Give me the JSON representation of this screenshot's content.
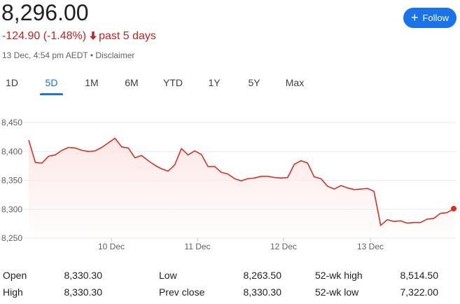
{
  "quote": {
    "price": "8,296.00",
    "change": "-124.90 (-1.48%)",
    "period": "past 5 days",
    "meta": "13 Dec, 4:54 pm AEDT • Disclaimer",
    "down_color": "#c5221f"
  },
  "follow_button": {
    "label": "Follow",
    "icon": "plus-icon",
    "color": "#1a73e8"
  },
  "tabs": [
    {
      "label": "1D",
      "active": false
    },
    {
      "label": "5D",
      "active": true
    },
    {
      "label": "1M",
      "active": false
    },
    {
      "label": "6M",
      "active": false
    },
    {
      "label": "YTD",
      "active": false
    },
    {
      "label": "1Y",
      "active": false
    },
    {
      "label": "5Y",
      "active": false
    },
    {
      "label": "Max",
      "active": false
    }
  ],
  "chart_data": {
    "type": "area",
    "title": "",
    "xlabel": "",
    "ylabel": "",
    "x_ticks": [
      "10 Dec",
      "11 Dec",
      "12 Dec",
      "13 Dec"
    ],
    "y_ticks": [
      "8,450",
      "8,400",
      "8,350",
      "8,300",
      "8,250"
    ],
    "ylim": [
      8250,
      8450
    ],
    "grid": true,
    "line_color": "#d93025",
    "fill_color": "#fce8e6",
    "series": [
      {
        "values": [
          8420,
          8381,
          8380,
          8392,
          8394,
          8402,
          8407,
          8406,
          8402,
          8400,
          8401,
          8407,
          8415,
          8423,
          8408,
          8406,
          8389,
          8393,
          8384,
          8376,
          8370,
          8366,
          8377,
          8405,
          8394,
          8401,
          8395,
          8374,
          8374,
          8364,
          8361,
          8353,
          8349,
          8353,
          8354,
          8357,
          8357,
          8355,
          8354,
          8355,
          8378,
          8384,
          8380,
          8356,
          8353,
          8340,
          8335,
          8341,
          8337,
          8334,
          8335,
          8336,
          8331,
          8272,
          8282,
          8279,
          8280,
          8276,
          8277,
          8277,
          8283,
          8284,
          8293,
          8294,
          8301
        ]
      }
    ]
  },
  "stats": [
    {
      "label": "Open",
      "value": "8,330.30"
    },
    {
      "label": "High",
      "value": "8,330.30"
    },
    {
      "label": "Low",
      "value": "8,263.50"
    },
    {
      "label": "Prev close",
      "value": "8,330.30"
    },
    {
      "label": "52-wk high",
      "value": "8,514.50"
    },
    {
      "label": "52-wk low",
      "value": "7,322.00"
    }
  ]
}
